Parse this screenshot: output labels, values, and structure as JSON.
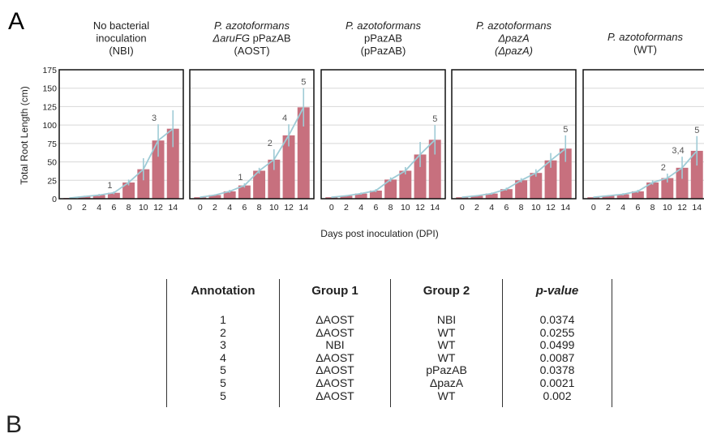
{
  "figure": {
    "panel_label_a": "A",
    "panel_label_b": "B"
  },
  "colors": {
    "bar": "#c7707e",
    "line": "#9fcbd6",
    "error": "#9fcbd6",
    "grid": "#d8d8d8"
  },
  "chart_data": {
    "type": "bar",
    "ylabel": "Total Root Length (cm)",
    "xlabel": "Days post inoculation (DPI)",
    "ylim": [
      0,
      175
    ],
    "yticks": [
      0,
      25,
      50,
      75,
      100,
      125,
      150,
      175
    ],
    "categories": [
      "0",
      "2",
      "4",
      "6",
      "8",
      "10",
      "12",
      "14"
    ],
    "grid": true,
    "overlay": "line through bar tops",
    "series": [
      {
        "title_lines": [
          {
            "text": "No bacterial",
            "italic": false
          },
          {
            "text": "inoculation",
            "italic": false
          },
          {
            "text": "(NBI)",
            "italic": false
          }
        ],
        "values": [
          1,
          3,
          5,
          8,
          22,
          40,
          79,
          95
        ],
        "errors": [
          0.5,
          1,
          1.5,
          2,
          4,
          15,
          22,
          25
        ],
        "annotations": [
          {
            "index": 3,
            "label": "1"
          },
          {
            "index": 6,
            "label": "3"
          }
        ]
      },
      {
        "title_lines": [
          {
            "text": "P. azotoformans",
            "italic": true
          },
          {
            "text": "ΔaruFG",
            "italic": true,
            "suffix": " pPazAB"
          },
          {
            "text": "(AOST)",
            "italic": false
          }
        ],
        "values": [
          2,
          5,
          10,
          18,
          38,
          53,
          86,
          124
        ],
        "errors": [
          0.5,
          1,
          2,
          3,
          4,
          14,
          15,
          26
        ],
        "annotations": [
          {
            "index": 3,
            "label": "1"
          },
          {
            "index": 5,
            "label": "2"
          },
          {
            "index": 6,
            "label": "4"
          },
          {
            "index": 7,
            "label": "5"
          }
        ]
      },
      {
        "title_lines": [
          {
            "text": "P. azotoformans",
            "italic": true
          },
          {
            "text": "pPazAB",
            "italic": false
          },
          {
            "text": "(pPazAB)",
            "italic": false
          }
        ],
        "values": [
          2,
          4,
          7,
          11,
          26,
          38,
          60,
          80
        ],
        "errors": [
          0.5,
          1,
          1.5,
          2,
          3,
          5,
          17,
          20
        ],
        "annotations": [
          {
            "index": 7,
            "label": "5"
          }
        ]
      },
      {
        "title_lines": [
          {
            "text": "P. azotoformans",
            "italic": true
          },
          {
            "text": "ΔpazA",
            "italic": true
          },
          {
            "text": "(ΔpazA)",
            "italic": true
          }
        ],
        "values": [
          2,
          4,
          7,
          13,
          25,
          35,
          52,
          68
        ],
        "errors": [
          0.5,
          1,
          1.5,
          2,
          3,
          5,
          10,
          18
        ],
        "annotations": [
          {
            "index": 7,
            "label": "5"
          }
        ]
      },
      {
        "title_lines": [
          {
            "text": "P. azotoformans",
            "italic": true
          },
          {
            "text": "(WT)",
            "italic": false
          }
        ],
        "values": [
          2,
          4,
          6,
          10,
          22,
          28,
          42,
          65
        ],
        "errors": [
          0.5,
          1,
          1.5,
          2,
          3,
          6,
          15,
          20
        ],
        "annotations": [
          {
            "index": 5,
            "label": "2"
          },
          {
            "index": 6,
            "label": "3,4"
          },
          {
            "index": 7,
            "label": "5"
          }
        ]
      }
    ]
  },
  "table": {
    "headers": [
      "Annotation",
      "Group 1",
      "Group 2",
      "p-value"
    ],
    "rows": [
      [
        "1",
        "ΔAOST",
        "NBI",
        "0.0374"
      ],
      [
        "2",
        "ΔAOST",
        "WT",
        "0.0255"
      ],
      [
        "3",
        "NBI",
        "WT",
        "0.0499"
      ],
      [
        "4",
        "ΔAOST",
        "WT",
        "0.0087"
      ],
      [
        "5",
        "ΔAOST",
        "pPazAB",
        "0.0378"
      ],
      [
        "5",
        "ΔAOST",
        "ΔpazA",
        "0.0021"
      ],
      [
        "5",
        "ΔAOST",
        "WT",
        "0.002"
      ]
    ]
  }
}
